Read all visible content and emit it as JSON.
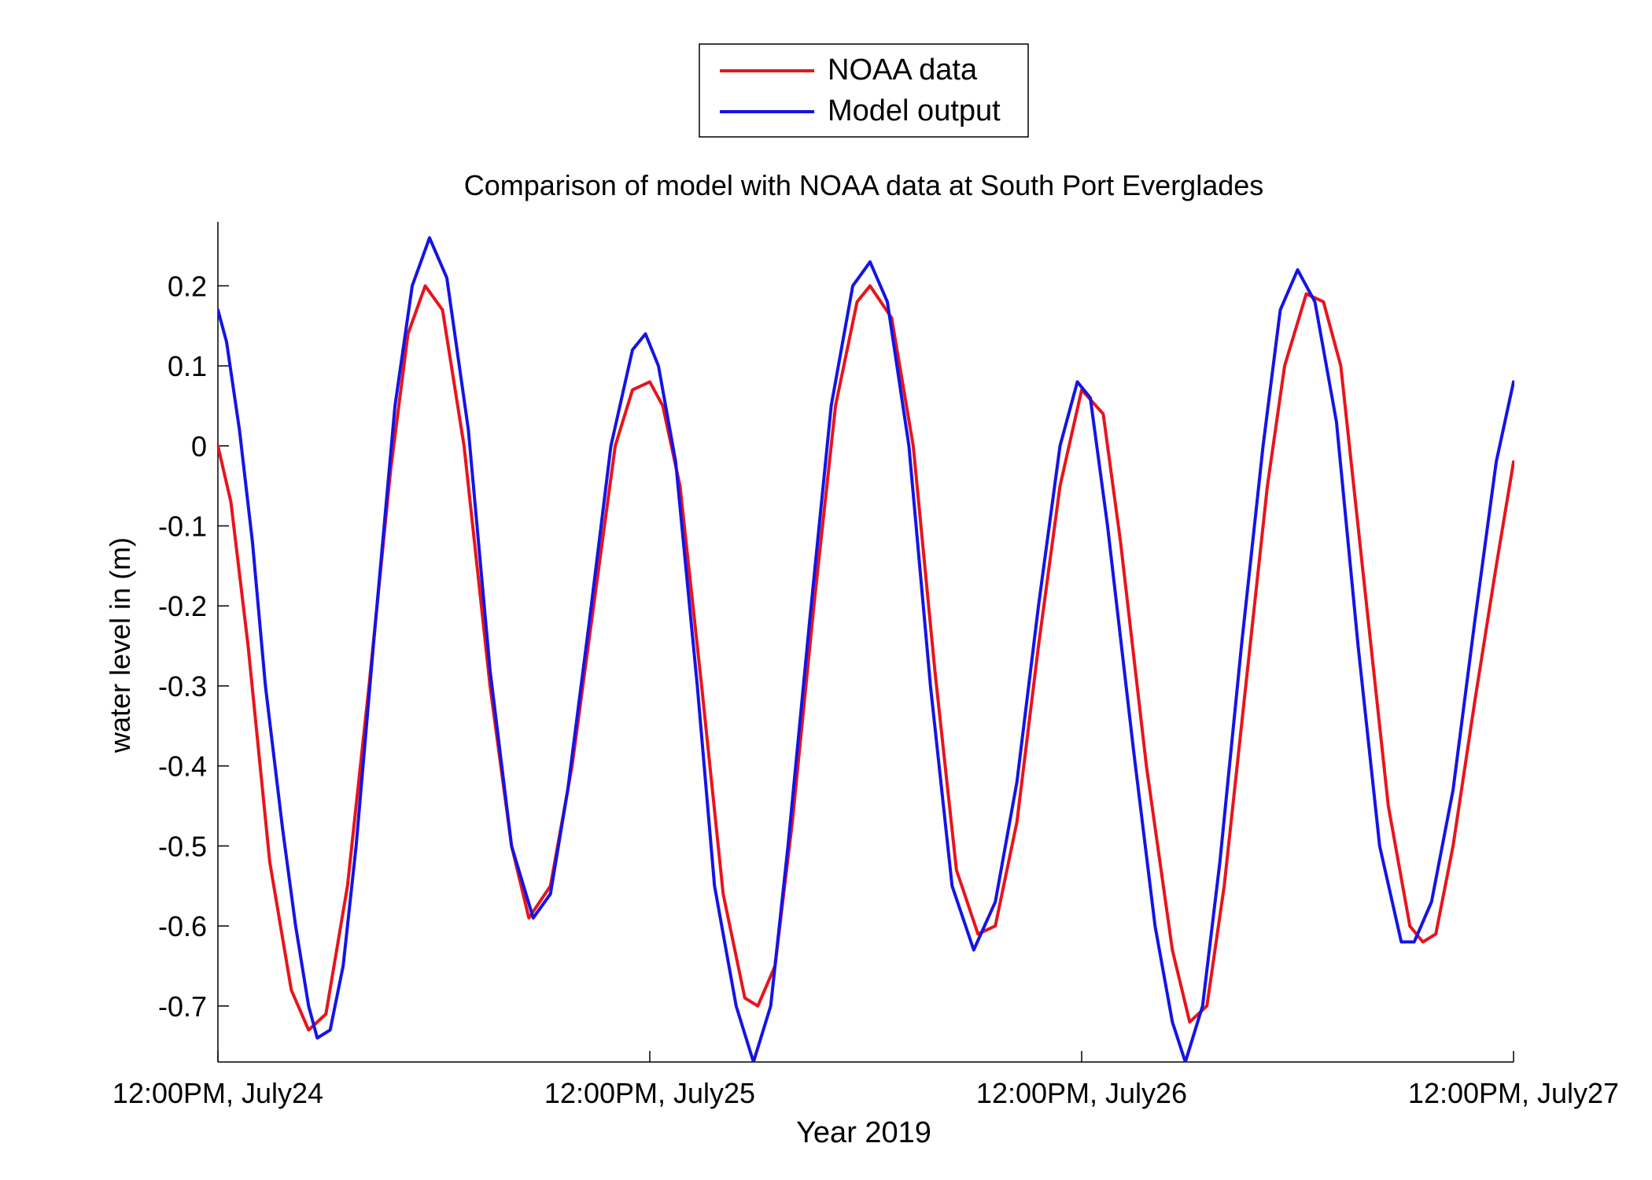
{
  "chart_data": {
    "type": "line",
    "title": "Comparison of model with NOAA data at South Port Everglades",
    "xlabel": "Year 2019",
    "ylabel": "water level in (m)",
    "x_unit": "days",
    "xlim": [
      0,
      3
    ],
    "ylim": [
      -0.77,
      0.28
    ],
    "x_ticks": [
      {
        "value": 0,
        "label": "12:00PM, July24"
      },
      {
        "value": 1,
        "label": "12:00PM, July25"
      },
      {
        "value": 2,
        "label": "12:00PM, July26"
      },
      {
        "value": 3,
        "label": "12:00PM, July27"
      }
    ],
    "y_ticks": [
      {
        "value": 0.2,
        "label": "0.2"
      },
      {
        "value": 0.1,
        "label": "0.1"
      },
      {
        "value": 0,
        "label": "0"
      },
      {
        "value": -0.1,
        "label": "-0.1"
      },
      {
        "value": -0.2,
        "label": "-0.2"
      },
      {
        "value": -0.3,
        "label": "-0.3"
      },
      {
        "value": -0.4,
        "label": "-0.4"
      },
      {
        "value": -0.5,
        "label": "-0.5"
      },
      {
        "value": -0.6,
        "label": "-0.6"
      },
      {
        "value": -0.7,
        "label": "-0.7"
      }
    ],
    "grid": false,
    "legend_position": "top-center-outside",
    "series": [
      {
        "name": "NOAA data",
        "color": "#e8141c",
        "points": [
          [
            0.0,
            0.0
          ],
          [
            0.03,
            -0.07
          ],
          [
            0.07,
            -0.25
          ],
          [
            0.12,
            -0.52
          ],
          [
            0.17,
            -0.68
          ],
          [
            0.21,
            -0.73
          ],
          [
            0.25,
            -0.71
          ],
          [
            0.3,
            -0.55
          ],
          [
            0.35,
            -0.3
          ],
          [
            0.4,
            -0.03
          ],
          [
            0.44,
            0.14
          ],
          [
            0.48,
            0.2
          ],
          [
            0.52,
            0.17
          ],
          [
            0.57,
            0.0
          ],
          [
            0.63,
            -0.3
          ],
          [
            0.68,
            -0.5
          ],
          [
            0.72,
            -0.59
          ],
          [
            0.77,
            -0.55
          ],
          [
            0.82,
            -0.4
          ],
          [
            0.87,
            -0.2
          ],
          [
            0.92,
            0.0
          ],
          [
            0.96,
            0.07
          ],
          [
            1.0,
            0.08
          ],
          [
            1.03,
            0.05
          ],
          [
            1.07,
            -0.05
          ],
          [
            1.12,
            -0.3
          ],
          [
            1.17,
            -0.56
          ],
          [
            1.22,
            -0.69
          ],
          [
            1.25,
            -0.7
          ],
          [
            1.29,
            -0.65
          ],
          [
            1.33,
            -0.47
          ],
          [
            1.38,
            -0.2
          ],
          [
            1.43,
            0.05
          ],
          [
            1.48,
            0.18
          ],
          [
            1.51,
            0.2
          ],
          [
            1.56,
            0.16
          ],
          [
            1.61,
            0.0
          ],
          [
            1.66,
            -0.28
          ],
          [
            1.71,
            -0.53
          ],
          [
            1.76,
            -0.61
          ],
          [
            1.8,
            -0.6
          ],
          [
            1.85,
            -0.47
          ],
          [
            1.9,
            -0.25
          ],
          [
            1.95,
            -0.05
          ],
          [
            2.0,
            0.07
          ],
          [
            2.05,
            0.04
          ],
          [
            2.09,
            -0.12
          ],
          [
            2.15,
            -0.4
          ],
          [
            2.21,
            -0.63
          ],
          [
            2.25,
            -0.72
          ],
          [
            2.29,
            -0.7
          ],
          [
            2.33,
            -0.55
          ],
          [
            2.38,
            -0.3
          ],
          [
            2.43,
            -0.05
          ],
          [
            2.47,
            0.1
          ],
          [
            2.52,
            0.19
          ],
          [
            2.56,
            0.18
          ],
          [
            2.6,
            0.1
          ],
          [
            2.65,
            -0.15
          ],
          [
            2.71,
            -0.45
          ],
          [
            2.76,
            -0.6
          ],
          [
            2.79,
            -0.62
          ],
          [
            2.82,
            -0.61
          ],
          [
            2.86,
            -0.5
          ],
          [
            2.91,
            -0.32
          ],
          [
            2.96,
            -0.15
          ],
          [
            3.0,
            -0.02
          ]
        ]
      },
      {
        "name": "Model output",
        "color": "#1414e6",
        "points": [
          [
            0.0,
            0.17
          ],
          [
            0.02,
            0.13
          ],
          [
            0.05,
            0.02
          ],
          [
            0.08,
            -0.12
          ],
          [
            0.11,
            -0.3
          ],
          [
            0.15,
            -0.48
          ],
          [
            0.18,
            -0.6
          ],
          [
            0.21,
            -0.7
          ],
          [
            0.23,
            -0.74
          ],
          [
            0.26,
            -0.73
          ],
          [
            0.29,
            -0.65
          ],
          [
            0.32,
            -0.5
          ],
          [
            0.36,
            -0.25
          ],
          [
            0.41,
            0.05
          ],
          [
            0.45,
            0.2
          ],
          [
            0.49,
            0.26
          ],
          [
            0.53,
            0.21
          ],
          [
            0.58,
            0.02
          ],
          [
            0.63,
            -0.28
          ],
          [
            0.68,
            -0.5
          ],
          [
            0.73,
            -0.59
          ],
          [
            0.77,
            -0.56
          ],
          [
            0.81,
            -0.43
          ],
          [
            0.86,
            -0.22
          ],
          [
            0.91,
            0.0
          ],
          [
            0.96,
            0.12
          ],
          [
            0.99,
            0.14
          ],
          [
            1.02,
            0.1
          ],
          [
            1.06,
            -0.02
          ],
          [
            1.11,
            -0.3
          ],
          [
            1.15,
            -0.55
          ],
          [
            1.2,
            -0.7
          ],
          [
            1.24,
            -0.77
          ],
          [
            1.28,
            -0.7
          ],
          [
            1.32,
            -0.5
          ],
          [
            1.37,
            -0.22
          ],
          [
            1.42,
            0.05
          ],
          [
            1.47,
            0.2
          ],
          [
            1.51,
            0.23
          ],
          [
            1.55,
            0.18
          ],
          [
            1.6,
            0.0
          ],
          [
            1.65,
            -0.3
          ],
          [
            1.7,
            -0.55
          ],
          [
            1.75,
            -0.63
          ],
          [
            1.8,
            -0.57
          ],
          [
            1.85,
            -0.42
          ],
          [
            1.9,
            -0.2
          ],
          [
            1.95,
            0.0
          ],
          [
            1.99,
            0.08
          ],
          [
            2.02,
            0.06
          ],
          [
            2.06,
            -0.1
          ],
          [
            2.12,
            -0.38
          ],
          [
            2.17,
            -0.6
          ],
          [
            2.21,
            -0.72
          ],
          [
            2.24,
            -0.77
          ],
          [
            2.28,
            -0.7
          ],
          [
            2.32,
            -0.52
          ],
          [
            2.37,
            -0.25
          ],
          [
            2.42,
            0.0
          ],
          [
            2.46,
            0.17
          ],
          [
            2.5,
            0.22
          ],
          [
            2.54,
            0.18
          ],
          [
            2.59,
            0.03
          ],
          [
            2.64,
            -0.25
          ],
          [
            2.69,
            -0.5
          ],
          [
            2.74,
            -0.62
          ],
          [
            2.77,
            -0.62
          ],
          [
            2.81,
            -0.57
          ],
          [
            2.86,
            -0.43
          ],
          [
            2.91,
            -0.22
          ],
          [
            2.96,
            -0.02
          ],
          [
            3.0,
            0.08
          ]
        ]
      }
    ]
  }
}
